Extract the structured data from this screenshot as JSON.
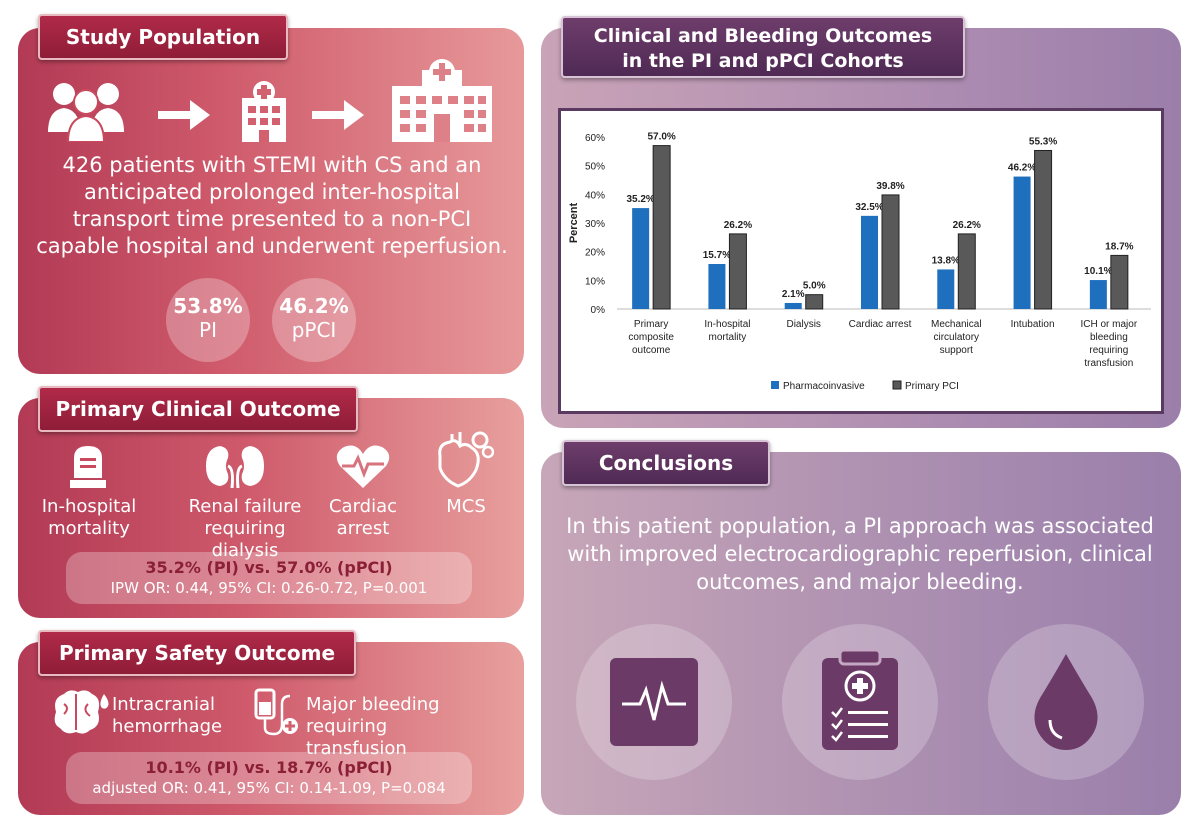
{
  "study": {
    "title": "Study Population",
    "description": "426 patients with STEMI with CS and an anticipated prolonged inter-hospital transport time presented to a non-PCI capable hospital and underwent reperfusion.",
    "pi_pct": "53.8%",
    "pi_label": "PI",
    "ppci_pct": "46.2%",
    "ppci_label": "pPCI"
  },
  "primary_clinical": {
    "title": "Primary Clinical Outcome",
    "items": [
      {
        "label_line1": "In-hospital",
        "label_line2": "mortality",
        "icon": "tombstone-icon"
      },
      {
        "label_line1": "Renal failure",
        "label_line2": "requiring dialysis",
        "icon": "kidneys-icon"
      },
      {
        "label_line1": "Cardiac",
        "label_line2": "arrest",
        "icon": "heart-ecg-icon"
      },
      {
        "label_line1": "MCS",
        "label_line2": "",
        "icon": "mechanical-heart-icon"
      }
    ],
    "result_main": "35.2% (PI) vs. 57.0% (pPCI)",
    "result_sub": "IPW OR: 0.44, 95% CI: 0.26-0.72, P=0.001"
  },
  "primary_safety": {
    "title": "Primary Safety Outcome",
    "items": [
      {
        "label_line1": "Intracranial",
        "label_line2": "hemorrhage",
        "icon": "brain-bleed-icon"
      },
      {
        "label_line1": "Major bleeding",
        "label_line2": "requiring transfusion",
        "icon": "transfusion-icon"
      }
    ],
    "result_main": "10.1% (PI) vs. 18.7% (pPCI)",
    "result_sub": "adjusted OR: 0.41, 95% CI: 0.14-1.09, P=0.084"
  },
  "chart_panel": {
    "title_line1": "Clinical and Bleeding Outcomes",
    "title_line2": "in the PI and pPCI Cohorts"
  },
  "chart_data": {
    "type": "bar",
    "ylabel": "Percent",
    "ylim": [
      0,
      60
    ],
    "yticks": [
      "0%",
      "10%",
      "20%",
      "30%",
      "40%",
      "50%",
      "60%"
    ],
    "categories": [
      [
        "Primary",
        "composite",
        "outcome"
      ],
      [
        "In-hospital",
        "mortality"
      ],
      [
        "Dialysis"
      ],
      [
        "Cardiac arrest"
      ],
      [
        "Mechanical",
        "circulatory",
        "support"
      ],
      [
        "Intubation"
      ],
      [
        "ICH or major",
        "bleeding",
        "requiring",
        "transfusion"
      ]
    ],
    "series": [
      {
        "name": "Pharmacoinvasive",
        "color": "#1f6fbf",
        "values": [
          35.2,
          15.7,
          2.1,
          32.5,
          13.8,
          46.2,
          10.1
        ],
        "labels": [
          "35.2%",
          "15.7%",
          "2.1%",
          "32.5%",
          "13.8%",
          "46.2%",
          "10.1%"
        ]
      },
      {
        "name": "Primary PCI",
        "color": "#595959",
        "values": [
          57.0,
          26.2,
          5.0,
          39.8,
          26.2,
          55.3,
          18.7
        ],
        "labels": [
          "57.0%",
          "26.2%",
          "5.0%",
          "39.8%",
          "26.2%",
          "55.3%",
          "18.7%"
        ]
      }
    ],
    "legend": "bottom-left",
    "grid": false
  },
  "conclusions": {
    "title": "Conclusions",
    "text": "In this patient population, a PI approach was associated with improved electrocardiographic reperfusion, clinical outcomes, and major bleeding.",
    "icons": [
      "ecg-monitor-icon",
      "medical-clipboard-icon",
      "blood-drop-icon"
    ]
  }
}
